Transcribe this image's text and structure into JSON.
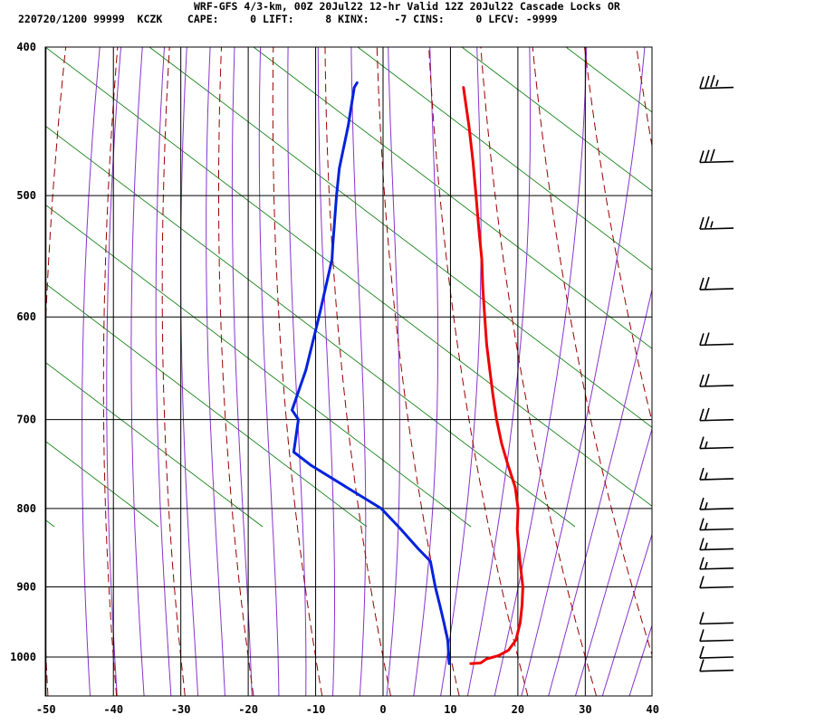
{
  "header": {
    "line1": "WRF-GFS 4/3-km, 00Z 20Jul22 12-hr Valid 12Z 20Jul22 Cascade Locks OR",
    "line2": "220720/1200 99999  KCZK    CAPE:     0 LIFT:     8 KINX:    -7 CINS:     0 LFCV: -9999"
  },
  "colors": {
    "temperature": "#ee0000",
    "dewpoint": "#0022dd",
    "isotherm_grid": "#000000",
    "dry_adiabat": "#990000",
    "moist_adiabat": "#8833cc",
    "mixing_ratio": "#007700"
  },
  "chart_data": {
    "type": "line",
    "title": "",
    "xlabel": "",
    "ylabel": "",
    "x_unit": "temperature (C), skewed",
    "y_unit": "pressure (hPa), log",
    "xlim": [
      -50,
      40
    ],
    "ylim": [
      1040,
      400
    ],
    "y_scale": "log",
    "x_ticks": [
      -50,
      -40,
      -30,
      -20,
      -10,
      0,
      10,
      20,
      30,
      40
    ],
    "y_ticks": [
      400,
      500,
      600,
      700,
      800,
      900,
      1000
    ],
    "grid": true,
    "series": [
      {
        "name": "",
        "kind": "temperature",
        "points": [
          {
            "p": 1010,
            "t": 13.6
          },
          {
            "p": 1009,
            "t": 15.0
          },
          {
            "p": 1003,
            "t": 15.5
          },
          {
            "p": 998,
            "t": 17.0
          },
          {
            "p": 990,
            "t": 18.0
          },
          {
            "p": 975,
            "t": 18.2
          },
          {
            "p": 950,
            "t": 17.3
          },
          {
            "p": 925,
            "t": 16.0
          },
          {
            "p": 900,
            "t": 14.5
          },
          {
            "p": 875,
            "t": 12.5
          },
          {
            "p": 850,
            "t": 10.5
          },
          {
            "p": 825,
            "t": 8.5
          },
          {
            "p": 800,
            "t": 6.8
          },
          {
            "p": 775,
            "t": 4.5
          },
          {
            "p": 750,
            "t": 1.5
          },
          {
            "p": 725,
            "t": -1.5
          },
          {
            "p": 700,
            "t": -4.3
          },
          {
            "p": 675,
            "t": -7.0
          },
          {
            "p": 650,
            "t": -9.7
          },
          {
            "p": 625,
            "t": -12.5
          },
          {
            "p": 600,
            "t": -15.2
          },
          {
            "p": 575,
            "t": -18.0
          },
          {
            "p": 550,
            "t": -20.8
          },
          {
            "p": 525,
            "t": -24.0
          },
          {
            "p": 500,
            "t": -27.3
          },
          {
            "p": 475,
            "t": -30.8
          },
          {
            "p": 450,
            "t": -34.6
          },
          {
            "p": 425,
            "t": -38.8
          }
        ]
      },
      {
        "name": "",
        "kind": "dewpoint",
        "points": [
          {
            "p": 1010,
            "t": 10.4
          },
          {
            "p": 975,
            "t": 8.1
          },
          {
            "p": 950,
            "t": 6.0
          },
          {
            "p": 925,
            "t": 3.8
          },
          {
            "p": 900,
            "t": 1.5
          },
          {
            "p": 866,
            "t": -1.5
          },
          {
            "p": 850,
            "t": -4.4
          },
          {
            "p": 825,
            "t": -8.8
          },
          {
            "p": 800,
            "t": -13.5
          },
          {
            "p": 775,
            "t": -20.5
          },
          {
            "p": 750,
            "t": -27.7
          },
          {
            "p": 735,
            "t": -31.5
          },
          {
            "p": 700,
            "t": -33.7
          },
          {
            "p": 690,
            "t": -35.5
          },
          {
            "p": 650,
            "t": -37.0
          },
          {
            "p": 600,
            "t": -39.8
          },
          {
            "p": 550,
            "t": -43.0
          },
          {
            "p": 540,
            "t": -44.0
          },
          {
            "p": 500,
            "t": -48.0
          },
          {
            "p": 480,
            "t": -50.0
          },
          {
            "p": 450,
            "t": -52.5
          },
          {
            "p": 425,
            "t": -55.0
          },
          {
            "p": 422,
            "t": -55.0
          }
        ]
      }
    ],
    "wind_barbs": [
      {
        "p": 425,
        "speed_kt": 35
      },
      {
        "p": 475,
        "speed_kt": 30
      },
      {
        "p": 525,
        "speed_kt": 25
      },
      {
        "p": 575,
        "speed_kt": 20
      },
      {
        "p": 625,
        "speed_kt": 20
      },
      {
        "p": 665,
        "speed_kt": 20
      },
      {
        "p": 700,
        "speed_kt": 20
      },
      {
        "p": 730,
        "speed_kt": 15
      },
      {
        "p": 765,
        "speed_kt": 15
      },
      {
        "p": 800,
        "speed_kt": 15
      },
      {
        "p": 825,
        "speed_kt": 15
      },
      {
        "p": 850,
        "speed_kt": 15
      },
      {
        "p": 875,
        "speed_kt": 15
      },
      {
        "p": 900,
        "speed_kt": 10
      },
      {
        "p": 950,
        "speed_kt": 10
      },
      {
        "p": 975,
        "speed_kt": 10
      },
      {
        "p": 1000,
        "speed_kt": 10
      },
      {
        "p": 1020,
        "speed_kt": 10
      }
    ]
  }
}
